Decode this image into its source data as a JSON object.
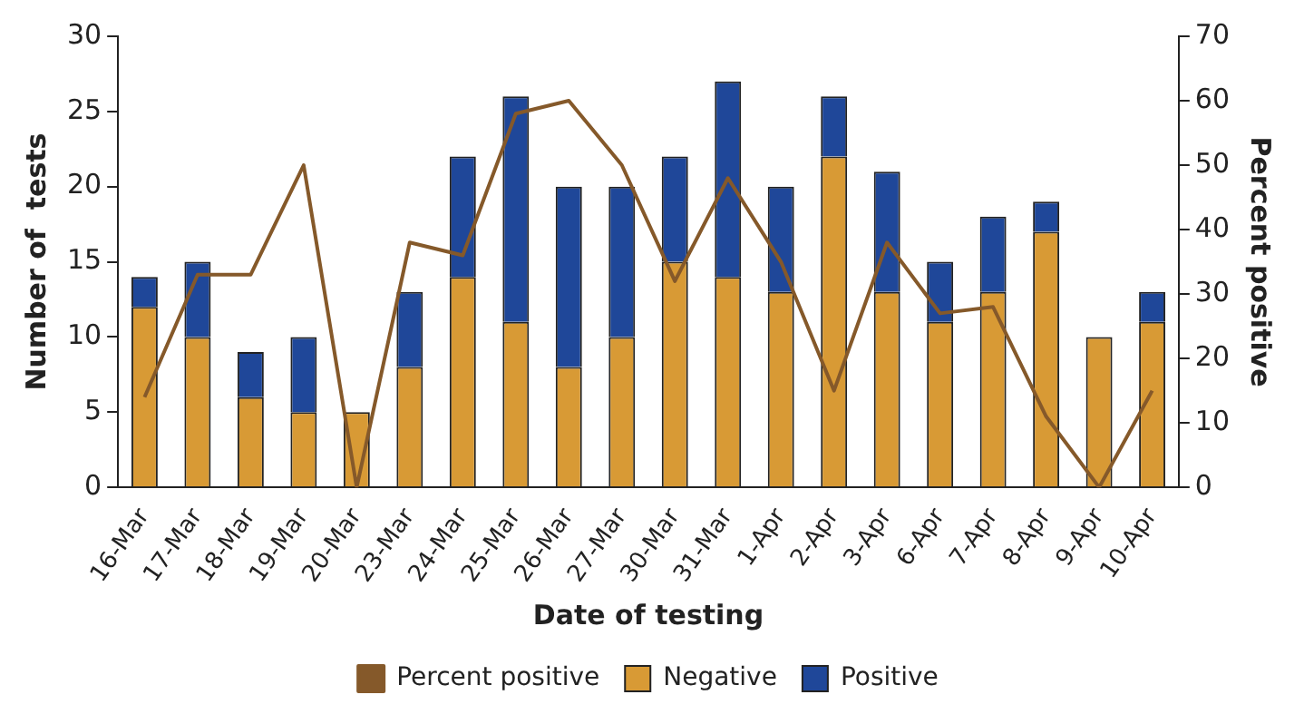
{
  "chart_data": {
    "type": "bar",
    "stacked": true,
    "xlabel": "Date of testing",
    "ylabel": "Number of  tests",
    "y2label": "Percent positive",
    "categories": [
      "16-Mar",
      "17-Mar",
      "18-Mar",
      "19-Mar",
      "20-Mar",
      "23-Mar",
      "24-Mar",
      "25-Mar",
      "26-Mar",
      "27-Mar",
      "30-Mar",
      "31-Mar",
      "1-Apr",
      "2-Apr",
      "3-Apr",
      "6-Apr",
      "7-Apr",
      "8-Apr",
      "9-Apr",
      "10-Apr"
    ],
    "series": [
      {
        "name": "Negative",
        "color": "#d89a35",
        "values": [
          12,
          10,
          6,
          5,
          5,
          8,
          14,
          11,
          8,
          10,
          15,
          14,
          13,
          22,
          13,
          11,
          13,
          17,
          10,
          11
        ]
      },
      {
        "name": "Positive",
        "color": "#1f4799",
        "values": [
          2,
          5,
          3,
          5,
          0,
          5,
          8,
          15,
          12,
          10,
          7,
          13,
          7,
          4,
          8,
          4,
          5,
          2,
          0,
          2
        ]
      },
      {
        "name": "Percent positive",
        "type": "line",
        "axis": "y2",
        "color": "#85592a",
        "values": [
          14,
          33,
          33,
          50,
          0,
          38,
          36,
          58,
          60,
          50,
          32,
          48,
          35,
          15,
          38,
          27,
          28,
          11,
          0,
          15
        ]
      }
    ],
    "ylim": [
      0,
      30
    ],
    "yticks": [
      0,
      5,
      10,
      15,
      20,
      25,
      30
    ],
    "y2lim": [
      0,
      70
    ],
    "y2ticks": [
      0,
      10,
      20,
      30,
      40,
      50,
      60,
      70
    ],
    "grid": false,
    "legend": "bottom",
    "marker": "none"
  }
}
